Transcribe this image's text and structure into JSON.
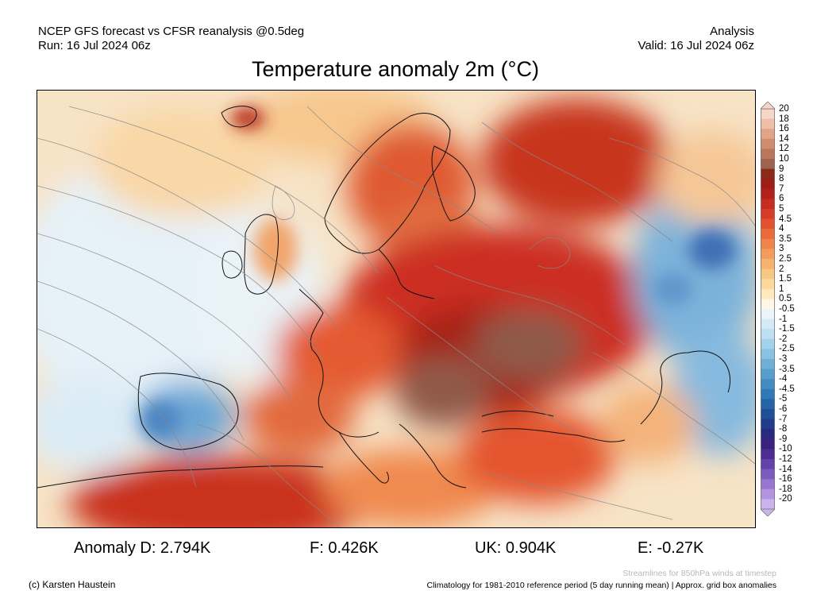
{
  "header": {
    "left_line1": "NCEP GFS forecast vs CFSR reanalysis @0.5deg",
    "left_line2": "Run: 16 Jul 2024 06z",
    "right_line1": "Analysis",
    "right_line2": "Valid: 16 Jul 2024 06z"
  },
  "title": "Temperature anomaly 2m (°C)",
  "colorbar": {
    "labels": [
      "20",
      "18",
      "16",
      "14",
      "12",
      "10",
      "9",
      "8",
      "7",
      "6",
      "5",
      "4.5",
      "4",
      "3.5",
      "3",
      "2.5",
      "2",
      "1.5",
      "1",
      "0.5",
      "-0.5",
      "-1",
      "-1.5",
      "-2",
      "-2.5",
      "-3",
      "-3.5",
      "-4",
      "-4.5",
      "-5",
      "-6",
      "-7",
      "-8",
      "-9",
      "-10",
      "-12",
      "-14",
      "-16",
      "-18",
      "-20"
    ],
    "colors": [
      "#f6d6c6",
      "#edbfa7",
      "#e1a487",
      "#cf8c6e",
      "#b9765c",
      "#9e6250",
      "#8b2a18",
      "#9f1d14",
      "#b3221a",
      "#c72c20",
      "#d83b26",
      "#e4512e",
      "#ec6a3a",
      "#f18449",
      "#f49c5c",
      "#f7b26f",
      "#f9c784",
      "#fbd99b",
      "#fde9bb",
      "#fff7e6",
      "#e9f4fb",
      "#d4ebf7",
      "#bcdff1",
      "#a2d1ea",
      "#88c1e1",
      "#6fb0d7",
      "#589ecd",
      "#438bc2",
      "#3178b6",
      "#2664a8",
      "#204f9a",
      "#213c8c",
      "#29297e",
      "#3a237e",
      "#4d2c94",
      "#6542ab",
      "#7d5ac0",
      "#9775d1",
      "#b193e0",
      "#cbb4ee"
    ]
  },
  "stats": {
    "d": "Anomaly D: 2.794K",
    "f": "F: 0.426K",
    "uk": "UK: 0.904K",
    "e": "E: -0.27K"
  },
  "footer": {
    "credit": "(c) Karsten Haustein",
    "streamlines": "Streamlines for 850hPa winds at timestep",
    "climatology": "Climatology for 1981-2010 reference period (5 day running mean) | Approx. grid box anomalies"
  }
}
